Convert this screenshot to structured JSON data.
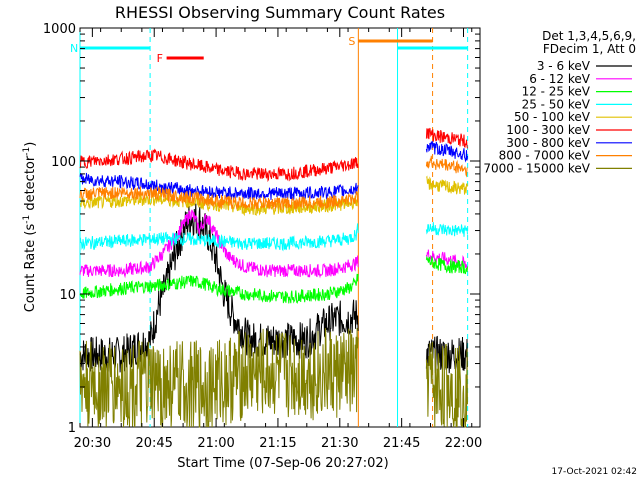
{
  "chart_data": {
    "type": "line",
    "title": "RHESSI Observing Summary Count Rates",
    "xlabel": "Start Time (07-Sep-06 20:27:02)",
    "ylabel_main": "Count Rate (s",
    "ylabel_sup1": "-1",
    "ylabel_mid": " detector",
    "ylabel_sup2": "-1",
    "ylabel_end": ")",
    "yscale": "log",
    "ylim": [
      1,
      1000
    ],
    "xlim_minutes": [
      0,
      97
    ],
    "x_ticks": [
      {
        "label": "20:30",
        "value": 3
      },
      {
        "label": "20:45",
        "value": 18
      },
      {
        "label": "21:00",
        "value": 33
      },
      {
        "label": "21:15",
        "value": 48
      },
      {
        "label": "21:30",
        "value": 63
      },
      {
        "label": "21:45",
        "value": 78
      },
      {
        "label": "22:00",
        "value": 93
      }
    ],
    "y_ticks": [
      {
        "label": "1",
        "value": 1
      },
      {
        "label": "10",
        "value": 10
      },
      {
        "label": "100",
        "value": 100
      },
      {
        "label": "1000",
        "value": 1000
      }
    ],
    "legend_header": [
      "Det 1,3,4,5,6,9,",
      "FDecim 1, Att 0"
    ],
    "series": [
      {
        "name": "3 - 6 keV",
        "color": "#000000",
        "x": [
          0,
          10,
          17,
          19,
          21,
          23,
          25,
          27,
          29,
          31,
          33,
          35,
          37,
          39,
          41,
          43,
          45,
          50,
          55,
          58,
          60,
          62,
          65,
          67.5,
          84,
          86,
          90,
          93,
          94
        ],
        "values": [
          3.5,
          3.5,
          4.5,
          8,
          12,
          20,
          30,
          38,
          36,
          28,
          18,
          10,
          7,
          5.5,
          4.5,
          4.5,
          4.5,
          4.5,
          4.5,
          5.5,
          6,
          6.5,
          6.5,
          7,
          3.5,
          3.5,
          3.5,
          3.5,
          3.5
        ]
      },
      {
        "name": "6 - 12 keV",
        "color": "#ff00ff",
        "x": [
          0,
          10,
          17,
          20,
          23,
          25,
          27,
          28,
          29,
          30,
          31,
          32,
          34,
          36,
          40,
          45,
          50,
          55,
          60,
          64,
          67,
          67.5,
          84,
          86,
          90,
          93,
          94
        ],
        "values": [
          15,
          15,
          16,
          20,
          26,
          33,
          41,
          36,
          30,
          35,
          38,
          32,
          24,
          19,
          16,
          15,
          15,
          15,
          15,
          16,
          17,
          18,
          20,
          19,
          18,
          17,
          16
        ]
      },
      {
        "name": "12 - 25 keV",
        "color": "#00ff00",
        "x": [
          0,
          10,
          18,
          23,
          27,
          30,
          33,
          40,
          50,
          60,
          65,
          67,
          67.5,
          84,
          86,
          90,
          93,
          94
        ],
        "values": [
          10,
          11,
          11.5,
          12,
          12.5,
          12,
          11,
          10,
          9.5,
          10,
          11,
          12,
          14,
          18,
          17,
          16,
          16,
          15
        ]
      },
      {
        "name": "25 - 50 keV",
        "color": "#00ffff",
        "x": [
          0,
          10,
          18,
          25,
          33,
          40,
          50,
          60,
          65,
          67,
          67.5,
          84,
          86,
          90,
          93,
          94
        ],
        "values": [
          24,
          25,
          26,
          26,
          25,
          24,
          24,
          25,
          26,
          28,
          32,
          32,
          31,
          30,
          30,
          30
        ]
      },
      {
        "name": "50 - 100 keV",
        "color": "#e0c000",
        "x": [
          0,
          10,
          18,
          25,
          33,
          40,
          50,
          60,
          65,
          67,
          67.5,
          84,
          86,
          90,
          93,
          94
        ],
        "values": [
          48,
          50,
          52,
          50,
          47,
          44,
          44,
          46,
          48,
          50,
          52,
          68,
          66,
          63,
          62,
          62
        ]
      },
      {
        "name": "100 - 300 keV",
        "color": "#ff0000",
        "x": [
          0,
          10,
          18,
          25,
          33,
          40,
          50,
          60,
          65,
          67.5,
          84,
          86,
          90,
          93,
          94
        ],
        "values": [
          98,
          104,
          110,
          98,
          86,
          80,
          80,
          88,
          94,
          98,
          165,
          155,
          148,
          142,
          138
        ]
      },
      {
        "name": "300 - 800 keV",
        "color": "#0000ff",
        "x": [
          0,
          10,
          18,
          25,
          33,
          40,
          50,
          60,
          65,
          67.5,
          84,
          86,
          90,
          93,
          94
        ],
        "values": [
          73,
          70,
          65,
          61,
          58,
          57,
          57,
          58,
          60,
          62,
          130,
          125,
          118,
          112,
          108
        ]
      },
      {
        "name": "800 - 7000 keV",
        "color": "#ff8000",
        "x": [
          0,
          10,
          18,
          25,
          33,
          40,
          50,
          60,
          65,
          67.5,
          84,
          86,
          90,
          93,
          94
        ],
        "values": [
          56,
          58,
          57,
          54,
          50,
          48,
          48,
          49,
          51,
          53,
          100,
          96,
          92,
          88,
          85
        ]
      },
      {
        "name": "7000 - 15000 keV",
        "color": "#808000",
        "x": [
          0,
          10,
          20,
          30,
          40,
          50,
          60,
          67.5,
          84,
          86,
          90,
          93,
          94
        ],
        "values": [
          2,
          2,
          2,
          2,
          2.5,
          2.5,
          2.5,
          2.5,
          2.5,
          2,
          2,
          2,
          2
        ]
      }
    ],
    "flags": [
      {
        "label": "N",
        "color": "#00ffff",
        "x_start": 0,
        "x_end": 17
      },
      {
        "label": "F",
        "color": "#ff0000",
        "x_start": 21,
        "x_end": 30
      },
      {
        "label": "S",
        "color": "#ff8000",
        "x_start": 67.5,
        "x_end": 85.5
      },
      {
        "label": "",
        "color": "#00ffff",
        "x_start": 77,
        "x_end": 94
      }
    ],
    "markers": [
      {
        "type": "solid",
        "color": "#00ffff",
        "x": 0
      },
      {
        "type": "dashed",
        "color": "#00ffff",
        "x": 17
      },
      {
        "type": "solid",
        "color": "#ff8000",
        "x": 67.5
      },
      {
        "type": "solid",
        "color": "#00ffff",
        "x": 77
      },
      {
        "type": "dashed",
        "color": "#ff8000",
        "x": 85.5
      },
      {
        "type": "dashed",
        "color": "#00ffff",
        "x": 94
      }
    ],
    "data_gap_minutes": [
      67.5,
      84
    ]
  },
  "timestamp": "17-Oct-2021 02:42"
}
